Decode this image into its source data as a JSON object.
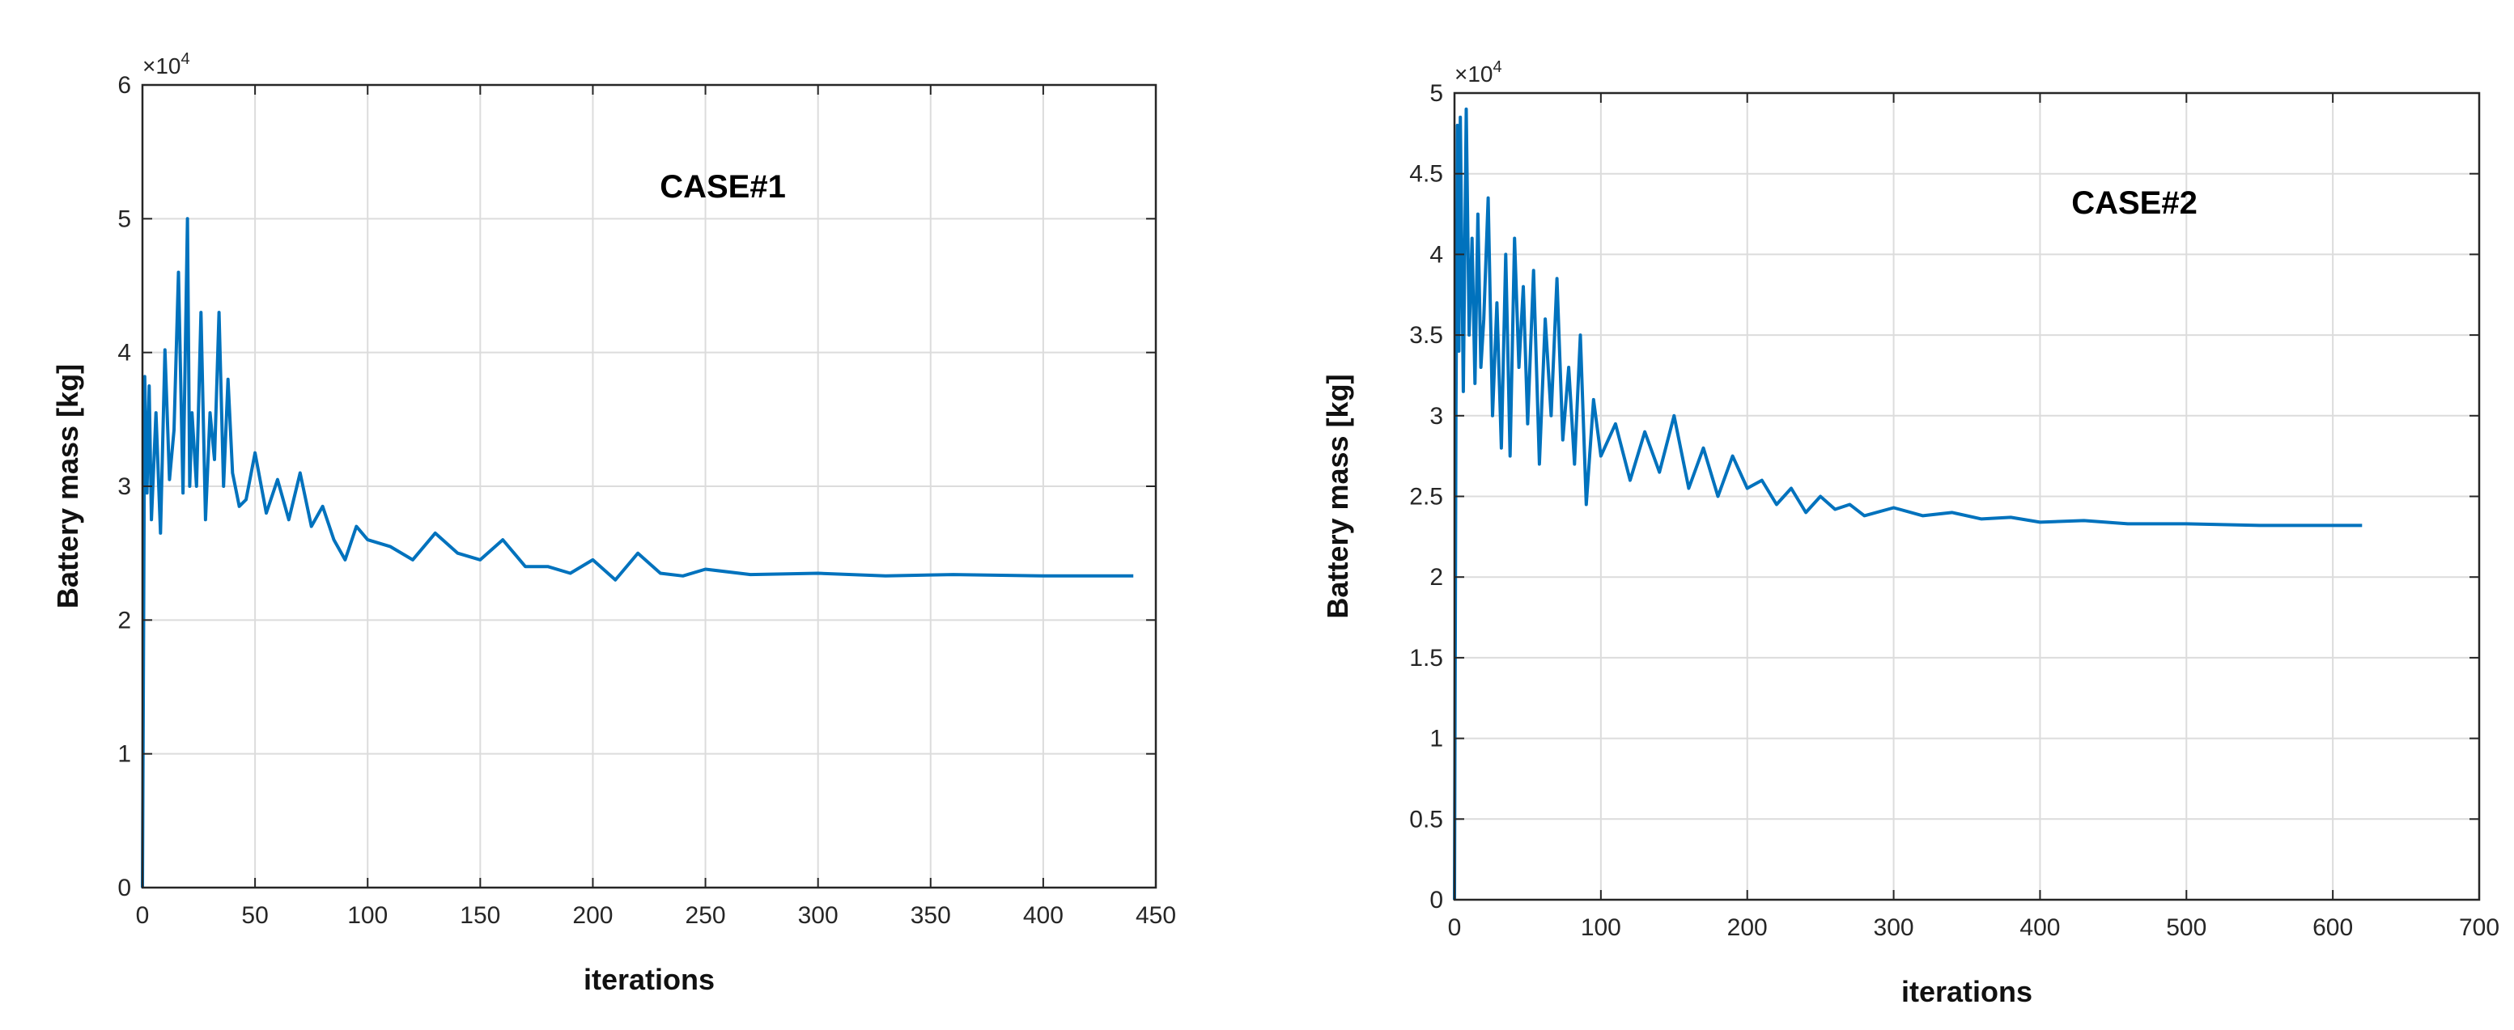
{
  "chart_data": [
    {
      "type": "line",
      "annotation": "CASE#1",
      "xlabel": "iterations",
      "ylabel": "Battery mass [kg]",
      "y_exponent_base": "×10",
      "y_exponent_power": "4",
      "xlim": [
        0,
        450
      ],
      "ylim": [
        0,
        6
      ],
      "xticks": [
        "0",
        "50",
        "100",
        "150",
        "200",
        "250",
        "300",
        "350",
        "400",
        "450"
      ],
      "yticks": [
        "0",
        "1",
        "2",
        "3",
        "4",
        "5",
        "6"
      ],
      "grid": true,
      "color": "#0072BD",
      "x": [
        0,
        1,
        2,
        3,
        4,
        6,
        8,
        10,
        12,
        14,
        16,
        18,
        20,
        21,
        22,
        24,
        26,
        28,
        30,
        32,
        34,
        36,
        38,
        40,
        43,
        46,
        50,
        55,
        60,
        65,
        70,
        75,
        80,
        85,
        90,
        95,
        100,
        110,
        120,
        130,
        140,
        150,
        160,
        170,
        180,
        190,
        200,
        210,
        220,
        230,
        240,
        250,
        270,
        300,
        330,
        360,
        400,
        440
      ],
      "y": [
        0,
        3.82,
        2.95,
        3.75,
        2.75,
        3.55,
        2.65,
        4.02,
        3.05,
        3.42,
        4.6,
        2.95,
        5.0,
        3.0,
        3.55,
        3.0,
        4.3,
        2.75,
        3.55,
        3.2,
        4.3,
        3.0,
        3.8,
        3.1,
        2.85,
        2.9,
        3.25,
        2.8,
        3.05,
        2.75,
        3.1,
        2.7,
        2.85,
        2.6,
        2.45,
        2.7,
        2.6,
        2.55,
        2.45,
        2.65,
        2.5,
        2.45,
        2.6,
        2.4,
        2.4,
        2.35,
        2.45,
        2.3,
        2.5,
        2.35,
        2.33,
        2.38,
        2.34,
        2.35,
        2.33,
        2.34,
        2.33,
        2.33
      ]
    },
    {
      "type": "line",
      "annotation": "CASE#2",
      "xlabel": "iterations",
      "ylabel": "Battery mass [kg]",
      "y_exponent_base": "×10",
      "y_exponent_power": "4",
      "xlim": [
        0,
        700
      ],
      "ylim": [
        0,
        5
      ],
      "xticks": [
        "0",
        "100",
        "200",
        "300",
        "400",
        "500",
        "600",
        "700"
      ],
      "yticks": [
        "0",
        "0.5",
        "1",
        "1.5",
        "2",
        "2.5",
        "3",
        "3.5",
        "4",
        "4.5",
        "5"
      ],
      "grid": true,
      "color": "#0072BD",
      "x": [
        0,
        1,
        2,
        3,
        4,
        6,
        8,
        10,
        12,
        14,
        16,
        18,
        20,
        23,
        26,
        29,
        32,
        35,
        38,
        41,
        44,
        47,
        50,
        54,
        58,
        62,
        66,
        70,
        74,
        78,
        82,
        86,
        90,
        95,
        100,
        110,
        120,
        130,
        140,
        150,
        160,
        170,
        180,
        190,
        200,
        210,
        220,
        230,
        240,
        250,
        260,
        270,
        280,
        300,
        320,
        340,
        360,
        380,
        400,
        430,
        460,
        500,
        550,
        620
      ],
      "y": [
        0,
        3.0,
        4.8,
        3.4,
        4.85,
        3.15,
        4.9,
        3.5,
        4.1,
        3.2,
        4.25,
        3.3,
        3.6,
        4.35,
        3.0,
        3.7,
        2.8,
        4.0,
        2.75,
        4.1,
        3.3,
        3.8,
        2.95,
        3.9,
        2.7,
        3.6,
        3.0,
        3.85,
        2.85,
        3.3,
        2.7,
        3.5,
        2.45,
        3.1,
        2.75,
        2.95,
        2.6,
        2.9,
        2.65,
        3.0,
        2.55,
        2.8,
        2.5,
        2.75,
        2.55,
        2.6,
        2.45,
        2.55,
        2.4,
        2.5,
        2.42,
        2.45,
        2.38,
        2.43,
        2.38,
        2.4,
        2.36,
        2.37,
        2.34,
        2.35,
        2.33,
        2.33,
        2.32,
        2.32
      ]
    }
  ]
}
